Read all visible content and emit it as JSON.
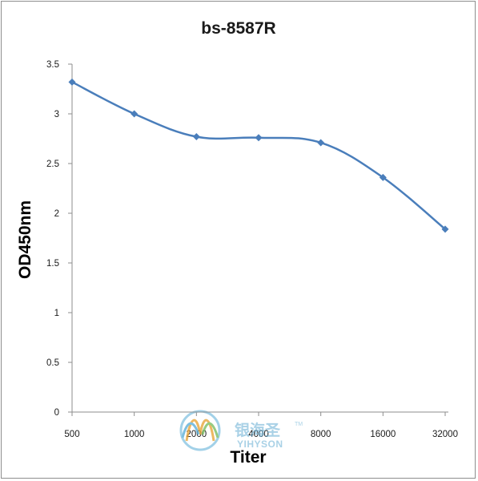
{
  "chart_data": {
    "type": "line",
    "title": "bs-8587R",
    "xlabel": "Titer",
    "ylabel": "OD450nm",
    "categories": [
      "500",
      "1000",
      "2000",
      "4000",
      "8000",
      "16000",
      "32000"
    ],
    "series": [
      {
        "values": [
          3.32,
          3.0,
          2.77,
          2.76,
          2.71,
          2.36,
          1.84
        ],
        "color": "#4a7ebb",
        "marker": "diamond"
      }
    ],
    "ylim": [
      0,
      3.5
    ],
    "yticks": [
      "0",
      "0.5",
      "1",
      "1.5",
      "2",
      "2.5",
      "3",
      "3.5"
    ],
    "grid": false,
    "legend": "none"
  },
  "watermark": {
    "chinese": "银海圣",
    "english": "YIHYSON",
    "tm": "TM"
  }
}
